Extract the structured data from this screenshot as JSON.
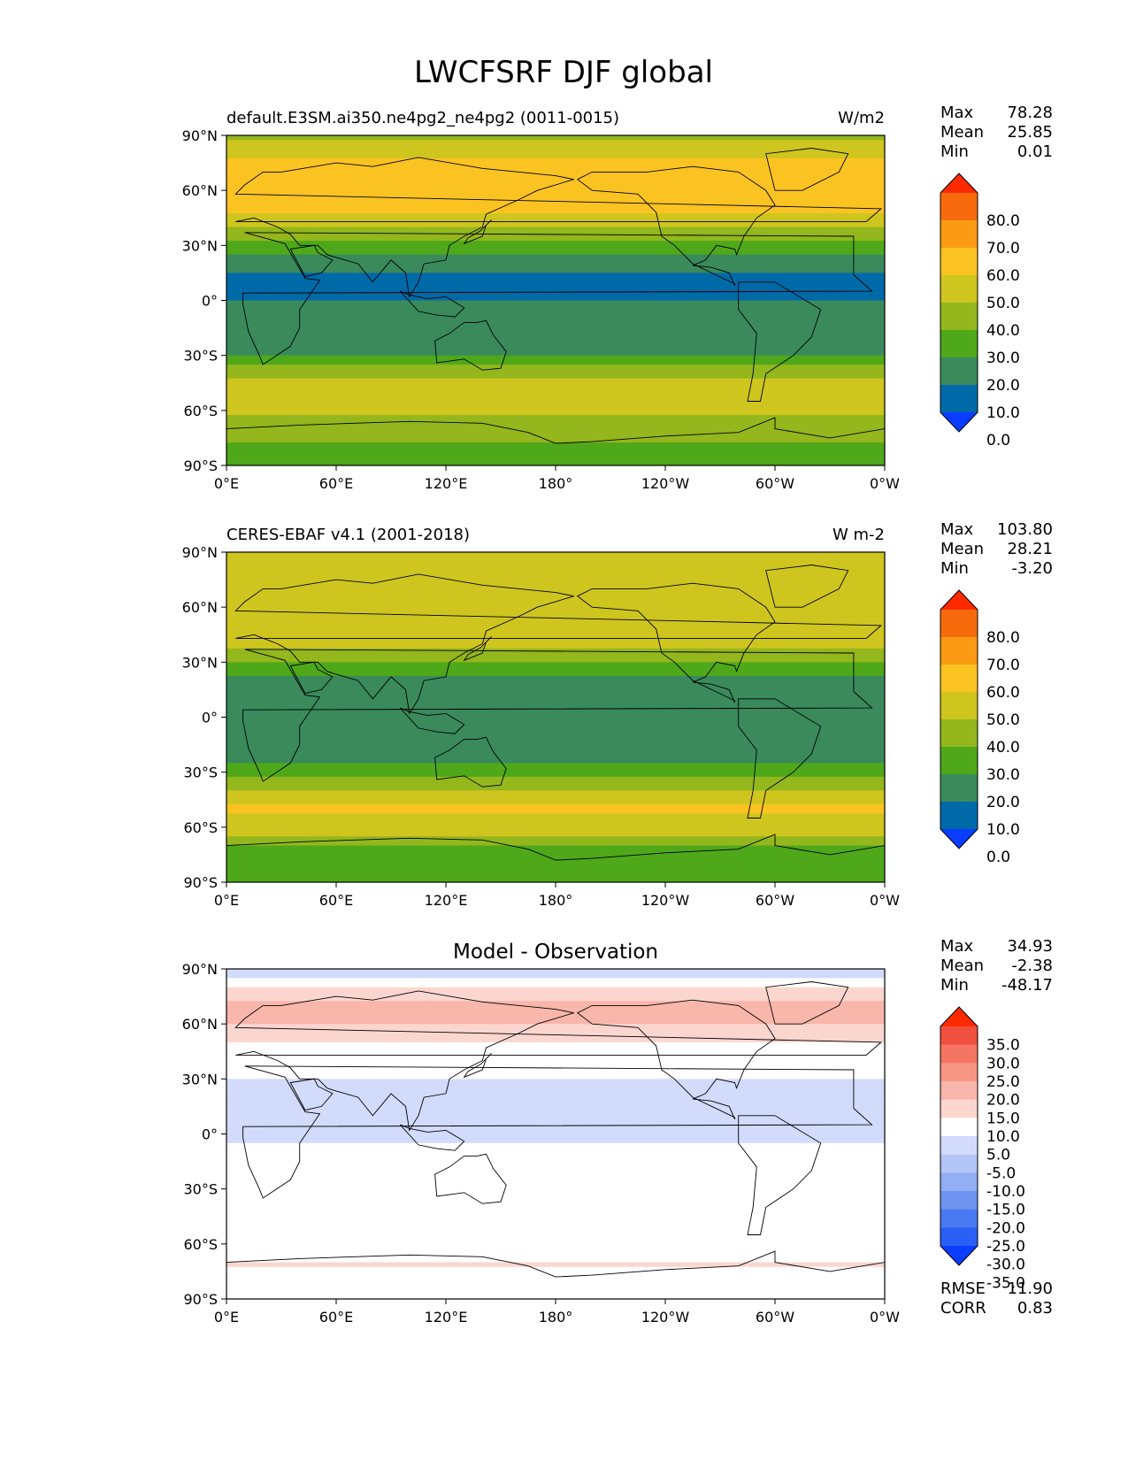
{
  "figure": {
    "title": "LWCFSRF DJF global"
  },
  "colors": {
    "abs_levels": [
      "#0a3dff",
      "#006aa8",
      "#3a8a5c",
      "#4ea81a",
      "#93b71c",
      "#cfc51f",
      "#fbc322",
      "#fb9b14",
      "#f76b0c",
      "#ff2a00"
    ],
    "diff_levels": [
      "#0a3dff",
      "#2a60f6",
      "#4a7af2",
      "#6f93f0",
      "#93aef3",
      "#b3c5f6",
      "#d2dbfb",
      "#ffffff",
      "#fbd6cf",
      "#f9b6aa",
      "#f89685",
      "#f57563",
      "#f05040",
      "#ff2a00"
    ],
    "land_outline": "#000000"
  },
  "chart_data": [
    {
      "type": "heatmap",
      "panel": "test",
      "title_left": "default.E3SM.ai350.ne4pg2_ne4pg2 (0011-0015)",
      "title_right": "W/m2",
      "xlabel": "",
      "ylabel": "",
      "xticks": [
        "0°E",
        "60°E",
        "120°E",
        "180°",
        "120°W",
        "60°W",
        "0°W"
      ],
      "yticks": [
        "90°N",
        "60°N",
        "30°N",
        "0°",
        "30°S",
        "60°S",
        "90°S"
      ],
      "xlim": [
        0,
        360
      ],
      "ylim": [
        -90,
        90
      ],
      "stats": [
        {
          "label": "Max",
          "value": "78.28"
        },
        {
          "label": "Mean",
          "value": "25.85"
        },
        {
          "label": "Min",
          "value": "0.01"
        }
      ],
      "colorbar": {
        "levels": [
          -10,
          0,
          10,
          20,
          30,
          40,
          50,
          60,
          70,
          80,
          90
        ],
        "tick_labels": [
          "80.0",
          "70.0",
          "60.0",
          "50.0",
          "40.0",
          "30.0",
          "20.0",
          "10.0",
          "0.0"
        ],
        "extend": "both"
      },
      "zonal_profile": {
        "lat": [
          90,
          80,
          70,
          60,
          50,
          40,
          30,
          20,
          10,
          0,
          -10,
          -20,
          -30,
          -40,
          -50,
          -60,
          -70,
          -80,
          -90
        ],
        "values": [
          38,
          48,
          56,
          58,
          55,
          40,
          25,
          12,
          8,
          10,
          14,
          12,
          20,
          38,
          48,
          42,
          36,
          28,
          28
        ]
      }
    },
    {
      "type": "heatmap",
      "panel": "reference",
      "title_left": "CERES-EBAF v4.1 (2001-2018)",
      "title_right": "W m-2",
      "xlabel": "",
      "ylabel": "",
      "xticks": [
        "0°E",
        "60°E",
        "120°E",
        "180°",
        "120°W",
        "60°W",
        "0°W"
      ],
      "yticks": [
        "90°N",
        "60°N",
        "30°N",
        "0°",
        "30°S",
        "60°S",
        "90°S"
      ],
      "xlim": [
        0,
        360
      ],
      "ylim": [
        -90,
        90
      ],
      "stats": [
        {
          "label": "Max",
          "value": "103.80"
        },
        {
          "label": "Mean",
          "value": "28.21"
        },
        {
          "label": "Min",
          "value": "-3.20"
        }
      ],
      "colorbar": {
        "levels": [
          -10,
          0,
          10,
          20,
          30,
          40,
          50,
          60,
          70,
          80,
          90
        ],
        "tick_labels": [
          "80.0",
          "70.0",
          "60.0",
          "50.0",
          "40.0",
          "30.0",
          "20.0",
          "10.0",
          "0.0"
        ],
        "extend": "both"
      },
      "zonal_profile": {
        "lat": [
          90,
          80,
          70,
          60,
          50,
          40,
          30,
          20,
          10,
          0,
          -10,
          -20,
          -30,
          -40,
          -50,
          -60,
          -70,
          -80,
          -90
        ],
        "values": [
          50,
          42,
          45,
          48,
          50,
          42,
          30,
          18,
          16,
          18,
          17,
          16,
          24,
          40,
          52,
          46,
          30,
          28,
          26
        ]
      }
    },
    {
      "type": "heatmap",
      "panel": "difference",
      "title": "Model - Observation",
      "xlabel": "",
      "ylabel": "",
      "xticks": [
        "0°E",
        "60°E",
        "120°E",
        "180°",
        "120°W",
        "60°W",
        "0°W"
      ],
      "yticks": [
        "90°N",
        "60°N",
        "30°N",
        "0°",
        "30°S",
        "60°S",
        "90°S"
      ],
      "xlim": [
        0,
        360
      ],
      "ylim": [
        -90,
        90
      ],
      "stats": [
        {
          "label": "Max",
          "value": "34.93"
        },
        {
          "label": "Mean",
          "value": "-2.38"
        },
        {
          "label": "Min",
          "value": "-48.17"
        }
      ],
      "extra_stats": [
        {
          "label": "RMSE",
          "value": "11.90"
        },
        {
          "label": "CORR",
          "value": "0.83"
        }
      ],
      "colorbar": {
        "levels": [
          -40,
          -35,
          -30,
          -25,
          -20,
          -15,
          -10,
          -5,
          5,
          10,
          15,
          20,
          25,
          30,
          35,
          40
        ],
        "tick_labels": [
          "35.0",
          "30.0",
          "25.0",
          "20.0",
          "15.0",
          "10.0",
          "5.0",
          "-5.0",
          "-10.0",
          "-15.0",
          "-20.0",
          "-25.0",
          "-30.0",
          "-35.0"
        ],
        "extend": "both"
      },
      "zonal_profile": {
        "lat": [
          90,
          80,
          70,
          60,
          50,
          40,
          30,
          20,
          10,
          0,
          -10,
          -20,
          -30,
          -40,
          -50,
          -60,
          -70,
          -80,
          -90
        ],
        "values": [
          -12,
          6,
          11,
          10,
          5,
          -2,
          -5,
          -6,
          -8,
          -8,
          -3,
          -4,
          -4,
          -2,
          -4,
          -4,
          6,
          0,
          2
        ]
      }
    }
  ]
}
